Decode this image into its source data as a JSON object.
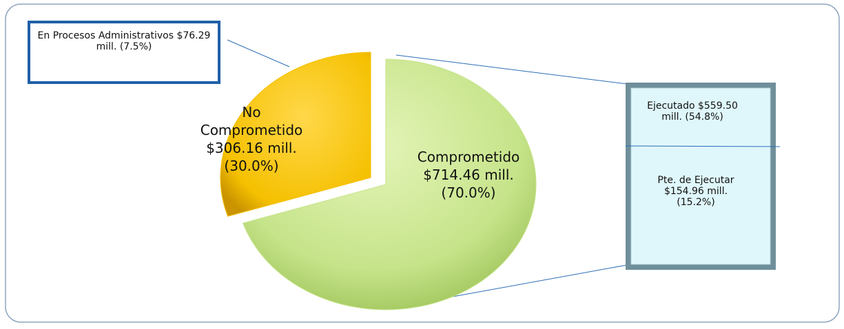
{
  "chart_data": {
    "type": "pie",
    "categories": [
      "Comprometido",
      "No Comprometido"
    ],
    "values": [
      70.0,
      30.0
    ],
    "value_labels": [
      "$714.46 mill. (70.0%)",
      "$306.16 mill. (30.0%)"
    ],
    "colors": [
      "#c6e48a",
      "#f5c000"
    ],
    "annotations": [
      "En Procesos Administrativos $76.29 mill. (7.5%)",
      "Ejecutado $559.50 mill. (54.8%)",
      "Pte. de Ejecutar $154.96 mill. (15.2%)"
    ]
  }
}
